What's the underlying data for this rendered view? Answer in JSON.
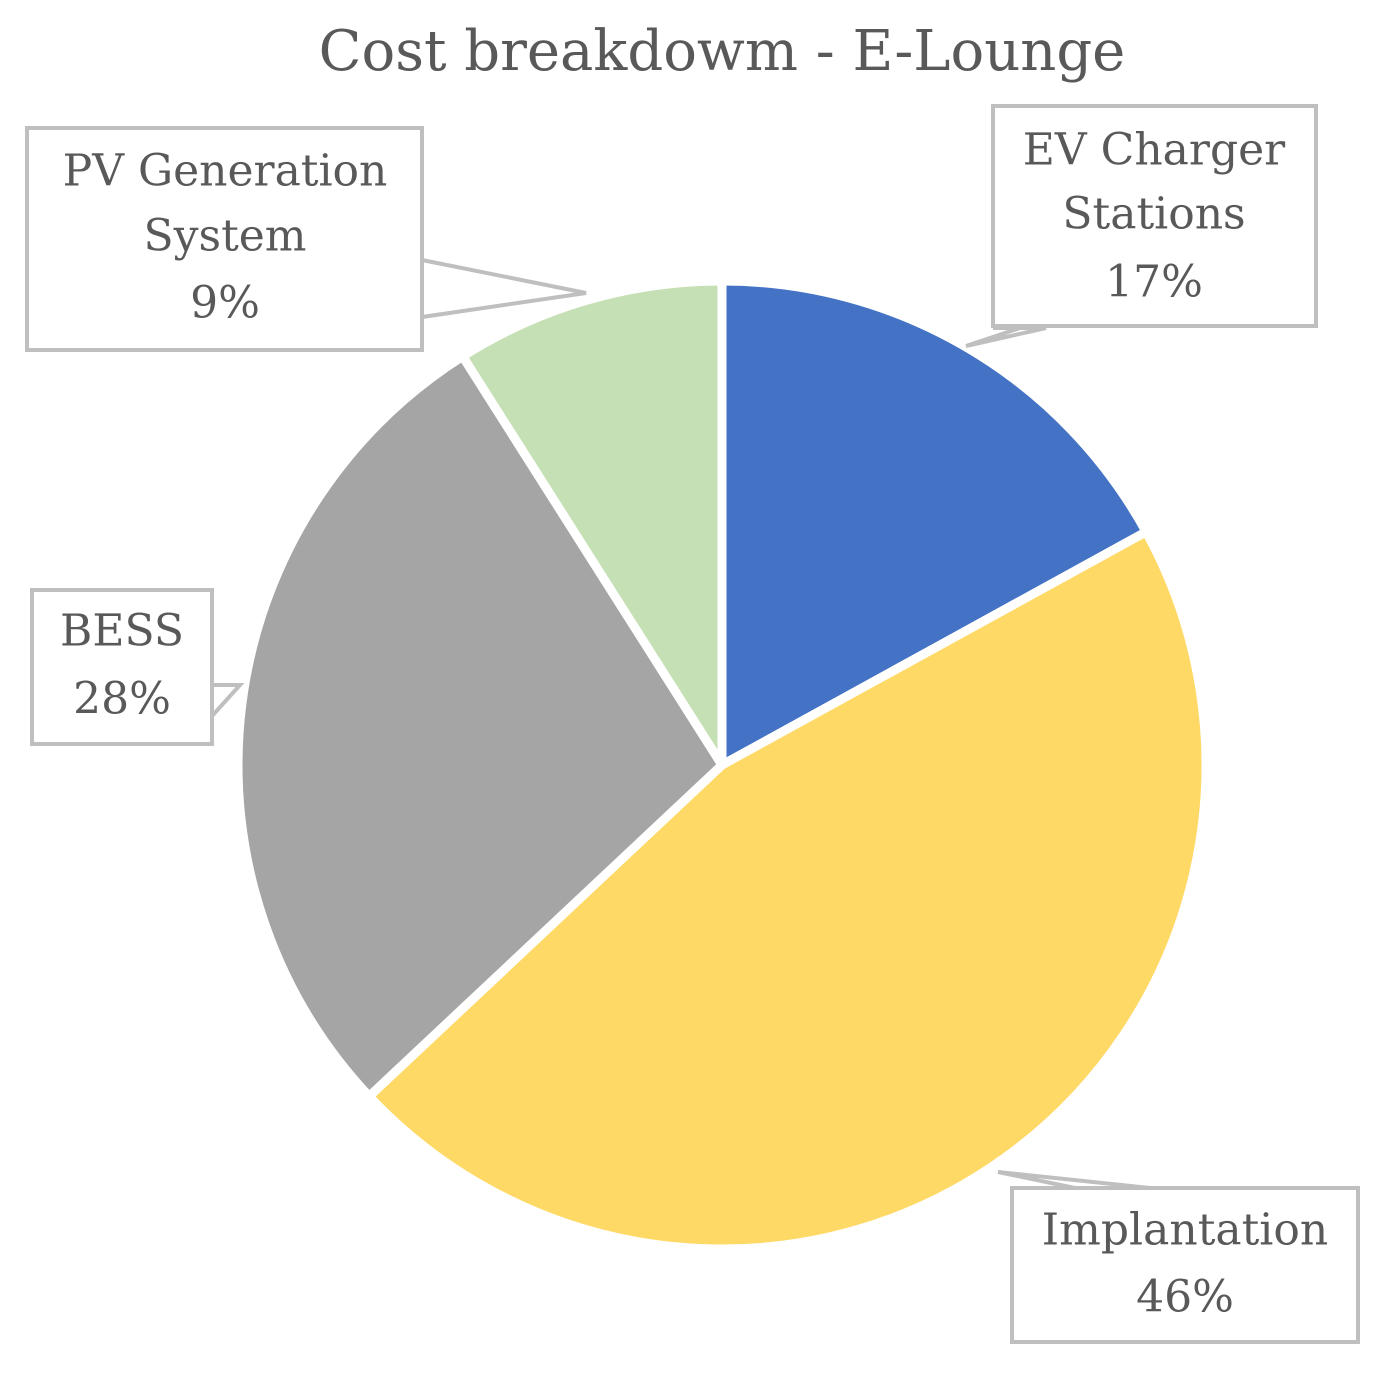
{
  "chart_data": {
    "type": "pie",
    "title": "Cost breakdowm - E-Lounge",
    "categories": [
      "EV Charger Stations",
      "Implantation",
      "BESS",
      "PV Generation System"
    ],
    "values": [
      17,
      46,
      28,
      9
    ],
    "value_labels": [
      "17%",
      "46%",
      "28%",
      "9%"
    ],
    "colors": [
      "#4472C4",
      "#FFD966",
      "#A5A5A5",
      "#C5E0B4"
    ],
    "label_lines": [
      [
        "EV Charger",
        "Stations",
        "17%"
      ],
      [
        "Implantation",
        "46%"
      ],
      [
        "BESS",
        "28%"
      ],
      [
        "PV Generation",
        "System",
        "9%"
      ]
    ],
    "legend": "none"
  }
}
